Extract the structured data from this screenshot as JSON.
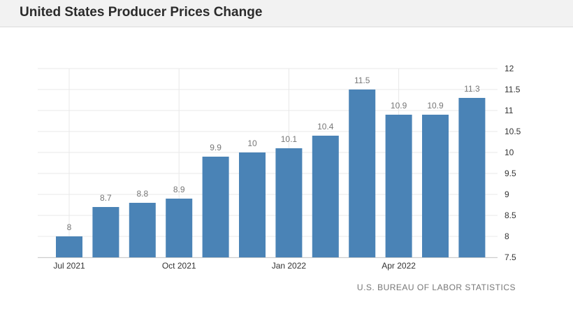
{
  "title": "United States Producer Prices Change",
  "source": "U.S. BUREAU OF LABOR STATISTICS",
  "colors": {
    "bar": "#4a83b6",
    "grid": "#e8e8e8",
    "label": "#777777",
    "axis": "#333333"
  },
  "chart_data": {
    "type": "bar",
    "categories": [
      "2021-07",
      "2021-08",
      "2021-09",
      "2021-10",
      "2021-11",
      "2021-12",
      "2022-01",
      "2022-02",
      "2022-03",
      "2022-04",
      "2022-05",
      "2022-06"
    ],
    "values": [
      8,
      8.7,
      8.8,
      8.9,
      9.9,
      10,
      10.1,
      10.4,
      11.5,
      10.9,
      10.9,
      11.3
    ],
    "data_labels": [
      "8",
      "8.7",
      "8.8",
      "8.9",
      "9.9",
      "10",
      "10.1",
      "10.4",
      "11.5",
      "10.9",
      "10.9",
      "11.3"
    ],
    "x_ticks": [
      {
        "index": 0,
        "label": "Jul 2021"
      },
      {
        "index": 3,
        "label": "Oct 2021"
      },
      {
        "index": 6,
        "label": "Jan 2022"
      },
      {
        "index": 9,
        "label": "Apr 2022"
      }
    ],
    "y_ticks": [
      "7.5",
      "8",
      "8.5",
      "9",
      "9.5",
      "10",
      "10.5",
      "11",
      "11.5",
      "12"
    ],
    "ylim": [
      7.5,
      12
    ],
    "y_axis_position": "right",
    "grid": true,
    "legend": "none"
  }
}
